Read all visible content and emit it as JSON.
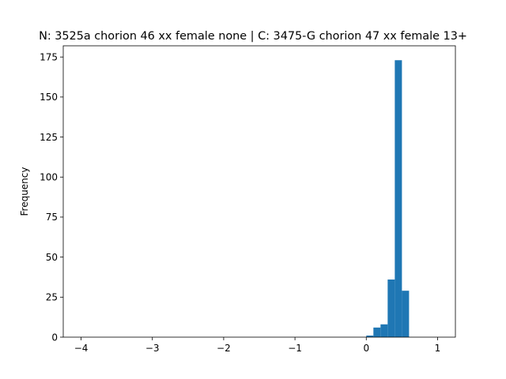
{
  "chart_data": {
    "type": "bar",
    "title": "N: 3525a chorion 46 xx female none | C: 3475-G chorion 47 xx female 13+",
    "xlabel": "",
    "ylabel": "Frequency",
    "xlim": [
      -4.25,
      1.25
    ],
    "ylim": [
      0,
      182
    ],
    "x_ticks": [
      -4,
      -3,
      -2,
      -1,
      0,
      1
    ],
    "x_tick_labels": [
      "−4",
      "−3",
      "−2",
      "−1",
      "0",
      "1"
    ],
    "y_ticks": [
      0,
      25,
      50,
      75,
      100,
      125,
      150,
      175
    ],
    "y_tick_labels": [
      "0",
      "25",
      "50",
      "75",
      "100",
      "125",
      "150",
      "175"
    ],
    "bar_color": "#1f77b4",
    "grid": false,
    "legend": "none",
    "bins": [
      {
        "x0": 0.0,
        "x1": 0.1,
        "count": 1
      },
      {
        "x0": 0.1,
        "x1": 0.2,
        "count": 6
      },
      {
        "x0": 0.2,
        "x1": 0.3,
        "count": 8
      },
      {
        "x0": 0.3,
        "x1": 0.4,
        "count": 36
      },
      {
        "x0": 0.4,
        "x1": 0.5,
        "count": 173
      },
      {
        "x0": 0.5,
        "x1": 0.6,
        "count": 29
      }
    ]
  }
}
